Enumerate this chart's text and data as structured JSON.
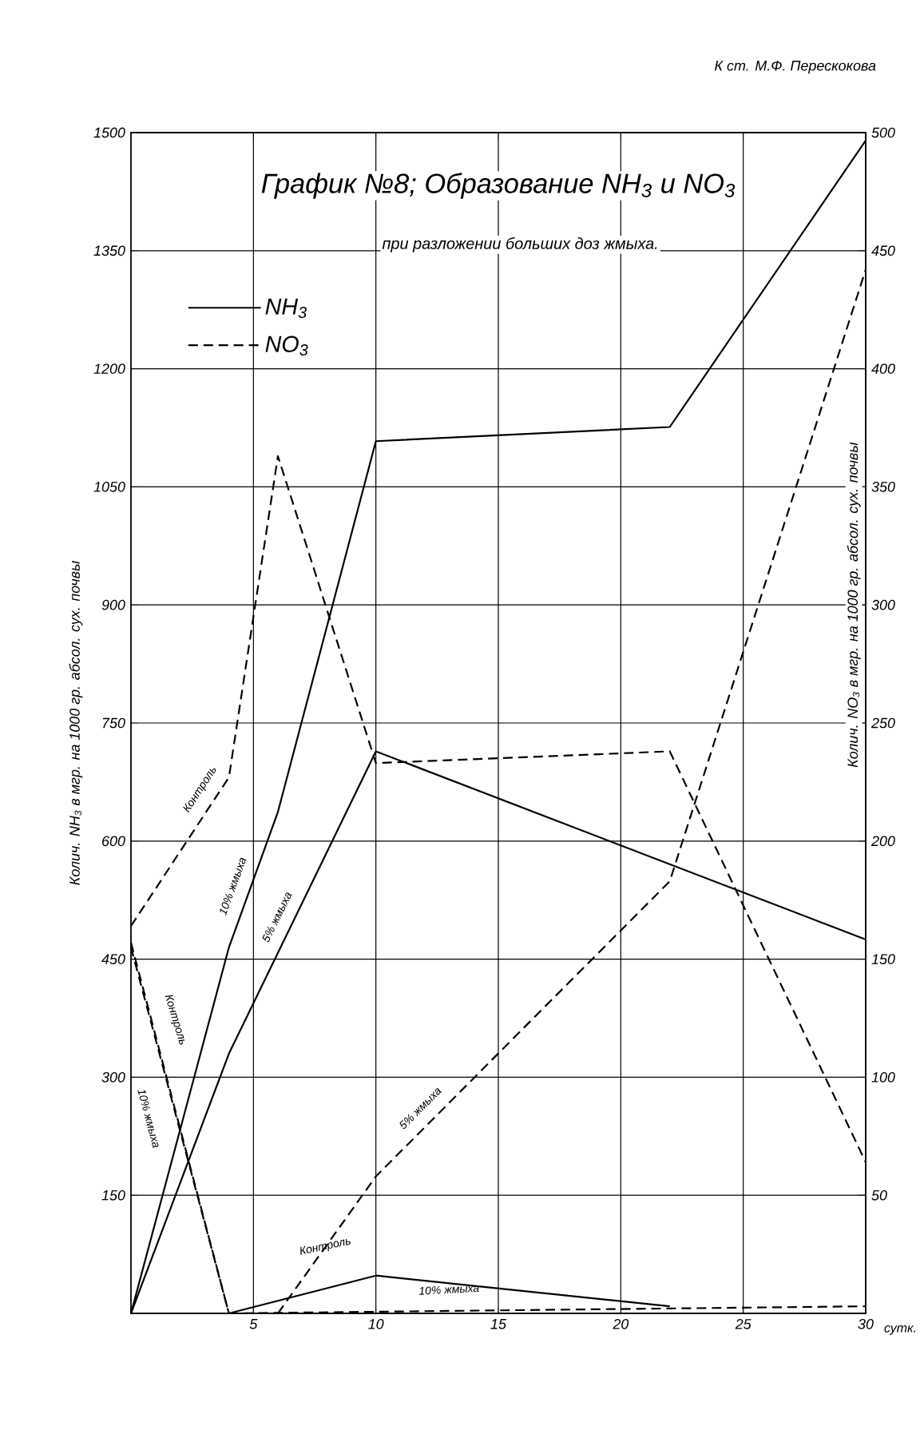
{
  "chart_data": {
    "type": "line",
    "title": "График №8; Образование NH$_{3}$ и NO$_{3}$",
    "subtitle": "при разложении больших доз жмыха.",
    "xlabel": "сутк.",
    "ylabel": "Колич. NH$_{3}$ в мгр. на 1000 гр. абсол. сух. почвы",
    "y2label": "Колич. NO$_{3}$ в мгр. на 1000 гр. абсол. сух. почвы",
    "xlim": [
      0,
      30
    ],
    "xticks": [
      5,
      10,
      15,
      20,
      25,
      30
    ],
    "ylim": [
      0,
      1500
    ],
    "yticks": [
      150,
      300,
      450,
      600,
      750,
      900,
      1050,
      1200,
      1350,
      1500
    ],
    "y2lim": [
      0,
      500
    ],
    "y2ticks": [
      50,
      100,
      150,
      200,
      250,
      300,
      350,
      400,
      450,
      500
    ],
    "grid": true,
    "legend": "top left",
    "series": [
      {
        "name": "NH$_{3}$",
        "color": "#000000",
        "line_style": "solid",
        "x": [
          0,
          4,
          6,
          10,
          22,
          30
        ],
        "values": [
          0,
          465,
          637,
          1108,
          1126,
          1490
        ]
      },
      {
        "color": "#000000",
        "line_style": "solid",
        "x": [
          0,
          4,
          10,
          30
        ],
        "values": [
          0,
          330,
          714,
          475
        ]
      },
      {
        "color": "#000000",
        "line_style": "solid",
        "x": [
          0,
          4,
          10,
          22
        ],
        "values": [
          0,
          0,
          48,
          9
        ]
      },
      {
        "name": "NO$_{3}$",
        "color": "#000000",
        "axis": "y2",
        "line_style": "dashed",
        "x": [
          0,
          4,
          6,
          10,
          22,
          30
        ],
        "values": [
          164,
          227,
          363,
          233,
          238,
          64
        ]
      },
      {
        "color": "#000000",
        "axis": "y2",
        "line_style": "dashed",
        "x": [
          0,
          4
        ],
        "values": [
          157,
          0
        ]
      },
      {
        "color": "#000000",
        "axis": "y2",
        "line_style": "dashed",
        "x": [
          0,
          4,
          30
        ],
        "values": [
          155,
          0,
          3
        ]
      },
      {
        "color": "#000000",
        "axis": "y2",
        "line_style": "dashed",
        "x": [
          6,
          10,
          22,
          30
        ],
        "values": [
          0,
          58,
          183,
          442
        ]
      }
    ],
    "annotations": [
      "К ст. М.Ф. Перескокова",
      "Контроль",
      "10% жмыха",
      "5% жмыха",
      "Контроль",
      "10% жмыха",
      "5% жмыха",
      "Контроль",
      "10% жмыха"
    ]
  }
}
